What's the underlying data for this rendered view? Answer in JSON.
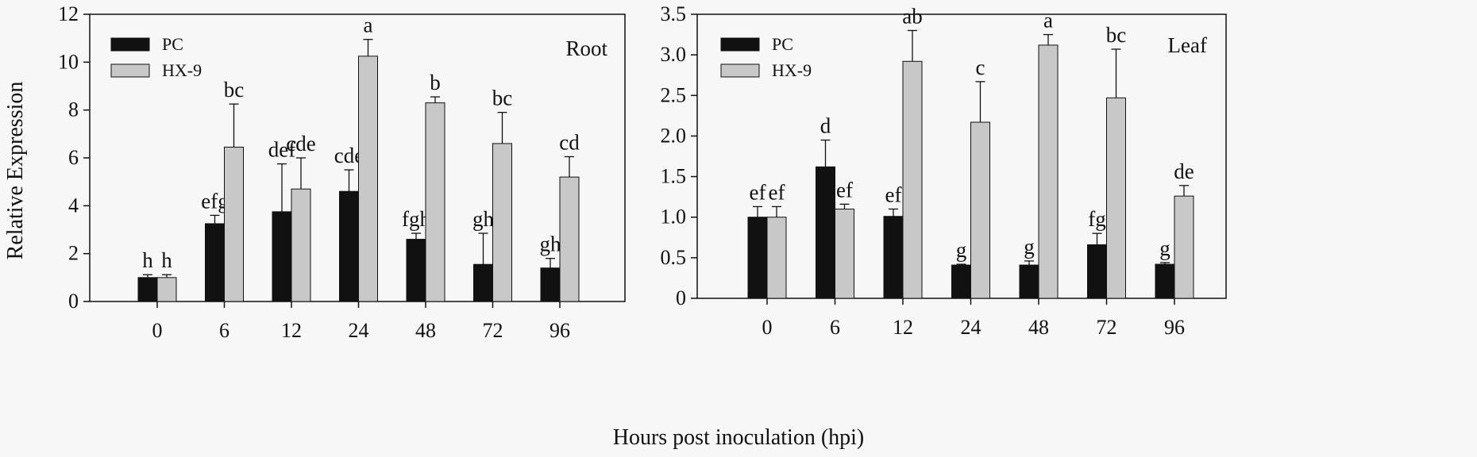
{
  "figure": {
    "y_axis_label": "Relative Expression",
    "x_axis_label": "Hours post inoculation (hpi)"
  },
  "chart_data": [
    {
      "type": "bar",
      "panel": "Root",
      "title": "Root",
      "xlabel": "Hours post inoculation (hpi)",
      "ylabel": "Relative Expression",
      "categories": [
        "0",
        "6",
        "12",
        "24",
        "48",
        "72",
        "96"
      ],
      "ylim": [
        0,
        12
      ],
      "yticks": [
        "0",
        "2",
        "4",
        "6",
        "8",
        "10",
        "12"
      ],
      "ytick_values": [
        0,
        2,
        4,
        6,
        8,
        10,
        12
      ],
      "legend_position": "top-left",
      "series": [
        {
          "name": "PC",
          "color": "#111111",
          "values": [
            1.0,
            3.25,
            3.75,
            4.6,
            2.6,
            1.55,
            1.4
          ],
          "errors": [
            0.12,
            0.35,
            2.0,
            0.9,
            0.25,
            1.3,
            0.4
          ],
          "letters": [
            "h",
            "efg",
            "def",
            "cde",
            "fgh",
            "gh",
            "gh"
          ]
        },
        {
          "name": "HX-9",
          "color": "#c8c8c8",
          "values": [
            1.0,
            6.45,
            4.7,
            10.25,
            8.3,
            6.6,
            5.2
          ],
          "errors": [
            0.12,
            1.8,
            1.3,
            0.7,
            0.25,
            1.3,
            0.85
          ],
          "letters": [
            "h",
            "bc",
            "cde",
            "a",
            "b",
            "bc",
            "cd"
          ]
        }
      ]
    },
    {
      "type": "bar",
      "panel": "Leaf",
      "title": "Leaf",
      "xlabel": "Hours post inoculation (hpi)",
      "ylabel": "",
      "categories": [
        "0",
        "6",
        "12",
        "24",
        "48",
        "72",
        "96"
      ],
      "ylim": [
        0,
        3.5
      ],
      "yticks": [
        "0",
        "0.5",
        "1.0",
        "1.5",
        "2.0",
        "2.5",
        "3.0",
        "3.5"
      ],
      "ytick_values": [
        0,
        0.5,
        1.0,
        1.5,
        2.0,
        2.5,
        3.0,
        3.5
      ],
      "legend_position": "top-left",
      "series": [
        {
          "name": "PC",
          "color": "#111111",
          "values": [
            1.0,
            1.62,
            1.01,
            0.41,
            0.41,
            0.66,
            0.42
          ],
          "errors": [
            0.13,
            0.33,
            0.09,
            0.01,
            0.05,
            0.14,
            0.02
          ],
          "letters": [
            "ef",
            "d",
            "ef",
            "g",
            "g",
            "fg",
            "g"
          ]
        },
        {
          "name": "HX-9",
          "color": "#c8c8c8",
          "values": [
            1.0,
            1.1,
            2.92,
            2.17,
            3.12,
            2.47,
            1.26
          ],
          "errors": [
            0.13,
            0.06,
            0.38,
            0.5,
            0.13,
            0.6,
            0.13
          ],
          "letters": [
            "ef",
            "ef",
            "ab",
            "c",
            "a",
            "bc",
            "de"
          ]
        }
      ]
    }
  ]
}
